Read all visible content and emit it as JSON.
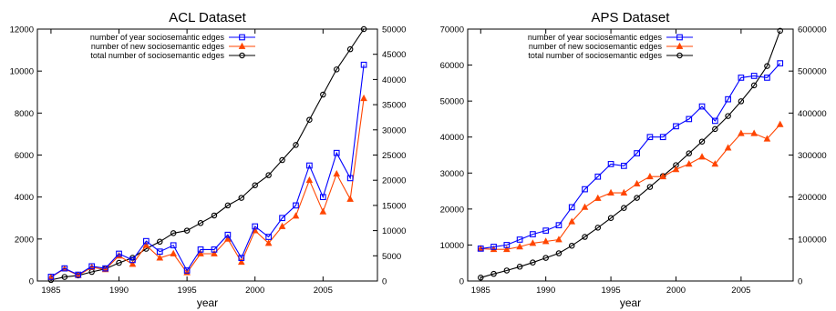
{
  "chart_data": [
    {
      "type": "line",
      "title": "ACL Dataset",
      "xlabel": "year",
      "ylabel": "",
      "legend_position": "top-center",
      "grid": false,
      "xlim": [
        1984,
        2009
      ],
      "xticks": [
        1985,
        1990,
        1995,
        2000,
        2005
      ],
      "ylim_left": [
        0,
        12000
      ],
      "yticks_left": [
        0,
        2000,
        4000,
        6000,
        8000,
        10000,
        12000
      ],
      "ylim_right": [
        0,
        50000
      ],
      "yticks_right": [
        0,
        5000,
        10000,
        15000,
        20000,
        25000,
        30000,
        35000,
        40000,
        45000,
        50000
      ],
      "x": [
        1985,
        1986,
        1987,
        1988,
        1989,
        1990,
        1991,
        1992,
        1993,
        1994,
        1995,
        1996,
        1997,
        1998,
        1999,
        2000,
        2001,
        2002,
        2003,
        2004,
        2005,
        2006,
        2007,
        2008
      ],
      "series": [
        {
          "name": "number of year sociosemantic edges",
          "axis": "left",
          "color": "#0000ff",
          "marker": "square",
          "values": [
            200,
            600,
            300,
            700,
            600,
            1300,
            1000,
            1900,
            1400,
            1700,
            500,
            1500,
            1500,
            2200,
            1100,
            2600,
            2100,
            3000,
            3600,
            5500,
            4000,
            6100,
            4900,
            10300
          ]
        },
        {
          "name": "number of new sociosemantic edges",
          "axis": "left",
          "color": "#ff4500",
          "marker": "triangle",
          "values": [
            180,
            580,
            270,
            650,
            550,
            1200,
            800,
            1700,
            1100,
            1300,
            400,
            1300,
            1300,
            2000,
            900,
            2400,
            1800,
            2600,
            3100,
            4800,
            3300,
            5100,
            3900,
            8700
          ]
        },
        {
          "name": "total number of sociosemantic edges",
          "axis": "right",
          "color": "#000000",
          "marker": "circle",
          "values": [
            200,
            800,
            1100,
            1800,
            2400,
            3600,
            4600,
            6400,
            7800,
            9500,
            10000,
            11500,
            13000,
            15000,
            16500,
            19000,
            21000,
            24000,
            27000,
            32000,
            37000,
            42000,
            46000,
            50000
          ]
        }
      ]
    },
    {
      "type": "line",
      "title": "APS Dataset",
      "xlabel": "year",
      "ylabel": "",
      "legend_position": "top-center",
      "grid": false,
      "xlim": [
        1984,
        2009
      ],
      "xticks": [
        1985,
        1990,
        1995,
        2000,
        2005
      ],
      "ylim_left": [
        0,
        70000
      ],
      "yticks_left": [
        0,
        10000,
        20000,
        30000,
        40000,
        50000,
        60000,
        70000
      ],
      "ylim_right": [
        0,
        600000
      ],
      "yticks_right": [
        0,
        100000,
        200000,
        300000,
        400000,
        500000,
        600000
      ],
      "x": [
        1985,
        1986,
        1987,
        1988,
        1989,
        1990,
        1991,
        1992,
        1993,
        1994,
        1995,
        1996,
        1997,
        1998,
        1999,
        2000,
        2001,
        2002,
        2003,
        2004,
        2005,
        2006,
        2007,
        2008
      ],
      "series": [
        {
          "name": "number of year sociosemantic edges",
          "axis": "left",
          "color": "#0000ff",
          "marker": "square",
          "values": [
            9000,
            9500,
            10000,
            11500,
            13000,
            14000,
            15500,
            20500,
            25500,
            29000,
            32500,
            32000,
            35500,
            40000,
            40000,
            43000,
            45000,
            48500,
            44500,
            50500,
            56500,
            57000,
            56500,
            60500
          ]
        },
        {
          "name": "number of new sociosemantic edges",
          "axis": "left",
          "color": "#ff4500",
          "marker": "triangle",
          "values": [
            9000,
            8800,
            8800,
            9500,
            10500,
            11000,
            11500,
            16500,
            20500,
            23000,
            24500,
            24500,
            27000,
            29000,
            29000,
            31000,
            32500,
            34500,
            32500,
            37000,
            41000,
            41000,
            39500,
            43500
          ]
        },
        {
          "name": "total number of sociosemantic edges",
          "axis": "right",
          "color": "#000000",
          "marker": "circle",
          "values": [
            8000,
            17000,
            25000,
            34000,
            44000,
            55000,
            66000,
            84000,
            105000,
            127000,
            150000,
            174000,
            198000,
            224000,
            250000,
            276000,
            304000,
            332000,
            362000,
            393000,
            428000,
            466000,
            512000,
            596000
          ]
        }
      ]
    }
  ]
}
